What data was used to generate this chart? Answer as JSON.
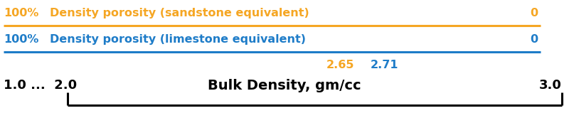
{
  "orange_color": "#F5A623",
  "blue_color": "#1E7CC8",
  "black_color": "#000000",
  "bg_color": "#FFFFFF",
  "sandstone_left": "100%",
  "sandstone_center": "Density porosity (sandstone equivalent)",
  "sandstone_right": "0",
  "limestone_left": "100%",
  "limestone_center": "Density porosity (limestone equivalent)",
  "limestone_right": "0",
  "density_265": "2.65",
  "density_271": "2.71",
  "axis_label": "Bulk Density, gm/cc",
  "axis_left_label": "1.0 ...  2.0",
  "axis_right_label": "3.0",
  "label_fontsize": 11.5,
  "axis_label_fontsize": 14,
  "tick_fontsize": 13,
  "density_fontsize": 11.5
}
